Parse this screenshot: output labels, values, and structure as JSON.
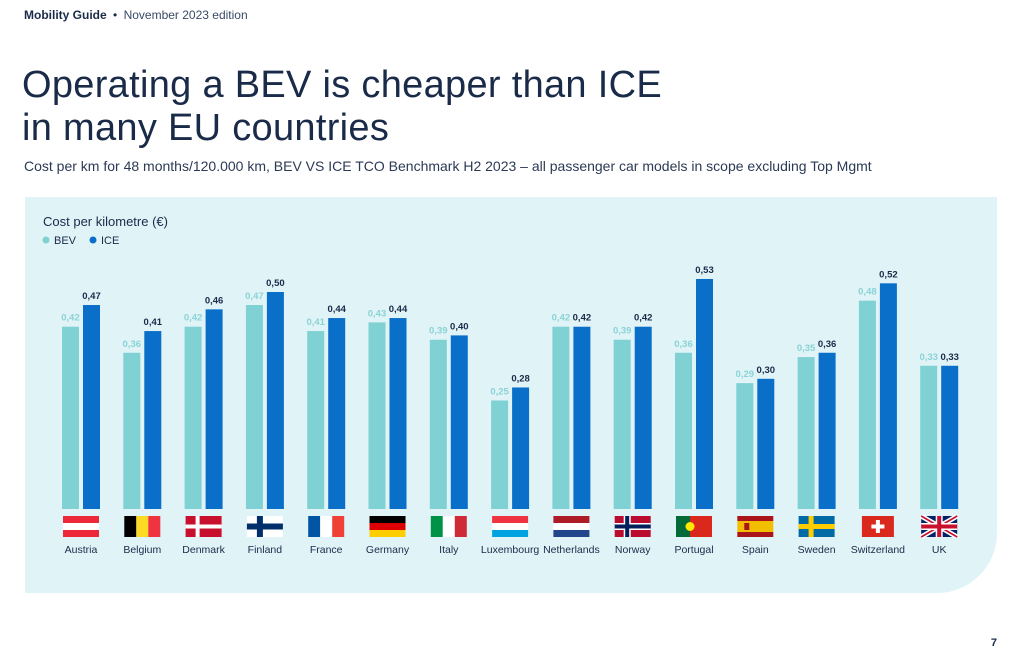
{
  "header": {
    "brand": "Mobility Guide",
    "separator": "•",
    "edition": "November 2023 edition"
  },
  "title_line1": "Operating a BEV is cheaper than ICE",
  "title_line2": "in many EU countries",
  "subtitle": "Cost per km for 48 months/120.000 km, BEV VS ICE TCO Benchmark H2 2023 – all passenger car models in scope excluding Top Mgmt",
  "page_number": "7",
  "colors": {
    "panel_bg": "#e0f3f7",
    "bev": "#7fd1d3",
    "ice": "#0a6fc9",
    "bev_label": "#8ad3d6",
    "ice_label": "#1a2b49"
  },
  "chart_data": {
    "type": "bar",
    "ylabel": "Cost per kilometre (€)",
    "legend_position": "top-left",
    "grid": false,
    "ylim": [
      0,
      0.55
    ],
    "categories": [
      "Austria",
      "Belgium",
      "Denmark",
      "Finland",
      "France",
      "Germany",
      "Italy",
      "Luxembourg",
      "Netherlands",
      "Norway",
      "Portugal",
      "Spain",
      "Sweden",
      "Switzerland",
      "UK"
    ],
    "series": [
      {
        "name": "BEV",
        "values": [
          0.42,
          0.36,
          0.42,
          0.47,
          0.41,
          0.43,
          0.39,
          0.25,
          0.42,
          0.39,
          0.36,
          0.29,
          0.35,
          0.48,
          0.33
        ]
      },
      {
        "name": "ICE",
        "values": [
          0.47,
          0.41,
          0.46,
          0.5,
          0.44,
          0.44,
          0.4,
          0.28,
          0.42,
          0.42,
          0.53,
          0.3,
          0.36,
          0.52,
          0.33
        ]
      }
    ],
    "value_labels": [
      [
        "0,42",
        "0,36",
        "0,42",
        "0,47",
        "0,41",
        "0,43",
        "0,39",
        "0,25",
        "0,42",
        "0,39",
        "0,36",
        "0,29",
        "0,35",
        "0,48",
        "0,33"
      ],
      [
        "0,47",
        "0,41",
        "0,46",
        "0,50",
        "0,44",
        "0,44",
        "0,40",
        "0,28",
        "0,42",
        "0,42",
        "0,53",
        "0,30",
        "0,36",
        "0,52",
        "0,33"
      ]
    ],
    "flags": [
      "flag-austria-icon",
      "flag-belgium-icon",
      "flag-denmark-icon",
      "flag-finland-icon",
      "flag-france-icon",
      "flag-germany-icon",
      "flag-italy-icon",
      "flag-luxembourg-icon",
      "flag-netherlands-icon",
      "flag-norway-icon",
      "flag-portugal-icon",
      "flag-spain-icon",
      "flag-sweden-icon",
      "flag-switzerland-icon",
      "flag-uk-icon"
    ]
  }
}
